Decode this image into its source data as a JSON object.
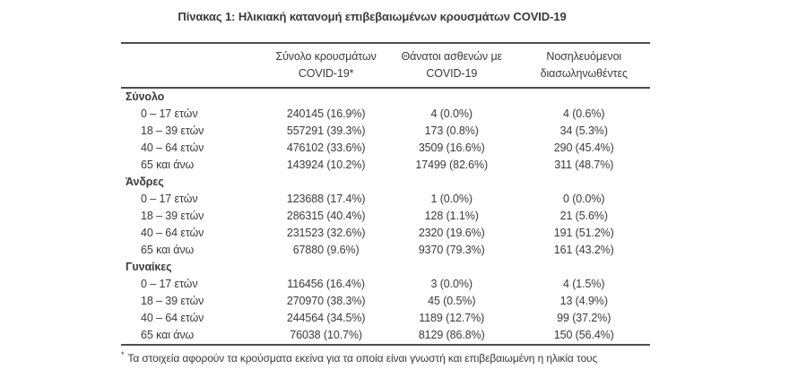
{
  "page": {
    "title": "Πίνακας 1: Ηλικιακή κατανομή επιβεβαιωμένων κρουσμάτων COVID-19"
  },
  "table": {
    "header": {
      "cases_line1": "Σύνολο κρουσμάτων",
      "cases_line2": "COVID-19*",
      "deaths_line1": "Θάνατοι ασθενών με",
      "deaths_line2": "COVID-19",
      "intubated_line1": "Νοσηλευόμενοι",
      "intubated_line2": "διασωληνωθέντες"
    },
    "sections": [
      {
        "label": "Σύνολο",
        "rows": [
          {
            "age": "0 – 17 ετών",
            "cases": "240145 (16.9%)",
            "deaths": "4 (0.0%)",
            "intubated": "4 (0.6%)"
          },
          {
            "age": "18 – 39 ετών",
            "cases": "557291 (39.3%)",
            "deaths": "173 (0.8%)",
            "intubated": "34 (5.3%)"
          },
          {
            "age": "40 – 64 ετών",
            "cases": "476102 (33.6%)",
            "deaths": "3509 (16.6%)",
            "intubated": "290 (45.4%)"
          },
          {
            "age": "65 και άνω",
            "cases": "143924 (10.2%)",
            "deaths": "17499 (82.6%)",
            "intubated": "311 (48.7%)"
          }
        ]
      },
      {
        "label": "Άνδρες",
        "rows": [
          {
            "age": "0 – 17 ετών",
            "cases": "123688 (17.4%)",
            "deaths": "1 (0.0%)",
            "intubated": "0 (0.0%)"
          },
          {
            "age": "18 – 39 ετών",
            "cases": "286315 (40.4%)",
            "deaths": "128 (1.1%)",
            "intubated": "21 (5.6%)"
          },
          {
            "age": "40 – 64 ετών",
            "cases": "231523 (32.6%)",
            "deaths": "2320 (19.6%)",
            "intubated": "191 (51.2%)"
          },
          {
            "age": "65 και άνω",
            "cases": "67880 (9.6%)",
            "deaths": "9370 (79.3%)",
            "intubated": "161 (43.2%)"
          }
        ]
      },
      {
        "label": "Γυναίκες",
        "rows": [
          {
            "age": "0 – 17 ετών",
            "cases": "116456 (16.4%)",
            "deaths": "3 (0.0%)",
            "intubated": "4 (1.5%)"
          },
          {
            "age": "18 – 39 ετών",
            "cases": "270970 (38.3%)",
            "deaths": "45 (0.5%)",
            "intubated": "13 (4.9%)"
          },
          {
            "age": "40 – 64 ετών",
            "cases": "244564 (34.5%)",
            "deaths": "1189 (12.7%)",
            "intubated": "99 (37.2%)"
          },
          {
            "age": "65 και άνω",
            "cases": "76038 (10.7%)",
            "deaths": "8129 (86.8%)",
            "intubated": "150 (56.4%)"
          }
        ]
      }
    ]
  },
  "footnote": {
    "marker": "*",
    "text": "Τα στοιχεία αφορούν τα κρούσματα εκείνα για τα οποία είναι γνωστή και επιβεβαιωμένη η ηλικία τους"
  },
  "colors": {
    "text": "#3a3a3a",
    "rule": "#4d4d4d",
    "background": "#ffffff"
  }
}
